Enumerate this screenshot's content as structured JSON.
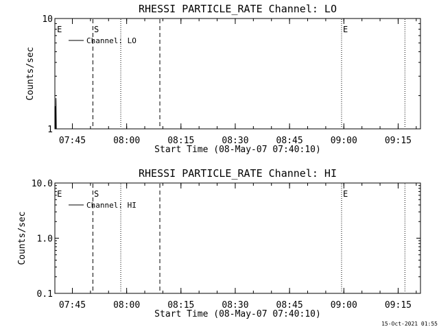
{
  "footer": {
    "timestamp": "15-Oct-2021 01:55"
  },
  "chart_data": [
    {
      "type": "line",
      "title": "RHESSI PARTICLE_RATE Channel: LO",
      "xlabel": "Start Time (08-May-07 07:40:10)",
      "ylabel": "Counts/sec",
      "yscale": "log",
      "ylim": [
        1,
        10
      ],
      "ytick_values": [
        1,
        10
      ],
      "ytick_labels": [
        "1",
        "10"
      ],
      "xlim_minutes": [
        0,
        101
      ],
      "xtick_minutes": [
        4.83,
        19.83,
        34.83,
        49.83,
        64.83,
        79.83,
        94.83
      ],
      "xtick_labels": [
        "07:45",
        "08:00",
        "08:15",
        "08:30",
        "08:45",
        "09:00",
        "09:15"
      ],
      "legend": {
        "position": "top-left",
        "entries": [
          "Channel: LO"
        ]
      },
      "vlines": [
        {
          "x": 10.5,
          "style": "dashed"
        },
        {
          "x": 18.2,
          "style": "dotted"
        },
        {
          "x": 29.0,
          "style": "dashed"
        },
        {
          "x": 79.2,
          "style": "dotted"
        },
        {
          "x": 96.7,
          "style": "dotted"
        }
      ],
      "markers": [
        {
          "x": 0.4,
          "label": "E"
        },
        {
          "x": 10.6,
          "label": "S"
        },
        {
          "x": 79.4,
          "label": "E"
        }
      ],
      "series": [
        {
          "name": "Channel: LO",
          "x": [
            0.0,
            0.1,
            0.2,
            0.3,
            0.4,
            0.5
          ],
          "y": [
            1.0,
            1.6,
            1.0,
            1.9,
            1.0,
            1.0
          ]
        }
      ]
    },
    {
      "type": "line",
      "title": "RHESSI PARTICLE_RATE Channel: HI",
      "xlabel": "Start Time (08-May-07 07:40:10)",
      "ylabel": "Counts/sec",
      "yscale": "log",
      "ylim": [
        0.1,
        10
      ],
      "ytick_values": [
        0.1,
        1,
        10
      ],
      "ytick_labels": [
        "0.1",
        "1.0",
        "10.0"
      ],
      "xlim_minutes": [
        0,
        101
      ],
      "xtick_minutes": [
        4.83,
        19.83,
        34.83,
        49.83,
        64.83,
        79.83,
        94.83
      ],
      "xtick_labels": [
        "07:45",
        "08:00",
        "08:15",
        "08:30",
        "08:45",
        "09:00",
        "09:15"
      ],
      "legend": {
        "position": "top-left",
        "entries": [
          "Channel: HI"
        ]
      },
      "vlines": [
        {
          "x": 10.5,
          "style": "dashed"
        },
        {
          "x": 18.2,
          "style": "dotted"
        },
        {
          "x": 29.0,
          "style": "dashed"
        },
        {
          "x": 79.2,
          "style": "dotted"
        },
        {
          "x": 96.7,
          "style": "dotted"
        }
      ],
      "markers": [
        {
          "x": 0.4,
          "label": "E"
        },
        {
          "x": 10.6,
          "label": "S"
        },
        {
          "x": 79.4,
          "label": "E"
        }
      ],
      "series": [
        {
          "name": "Channel: HI",
          "x": [],
          "y": []
        }
      ]
    }
  ]
}
